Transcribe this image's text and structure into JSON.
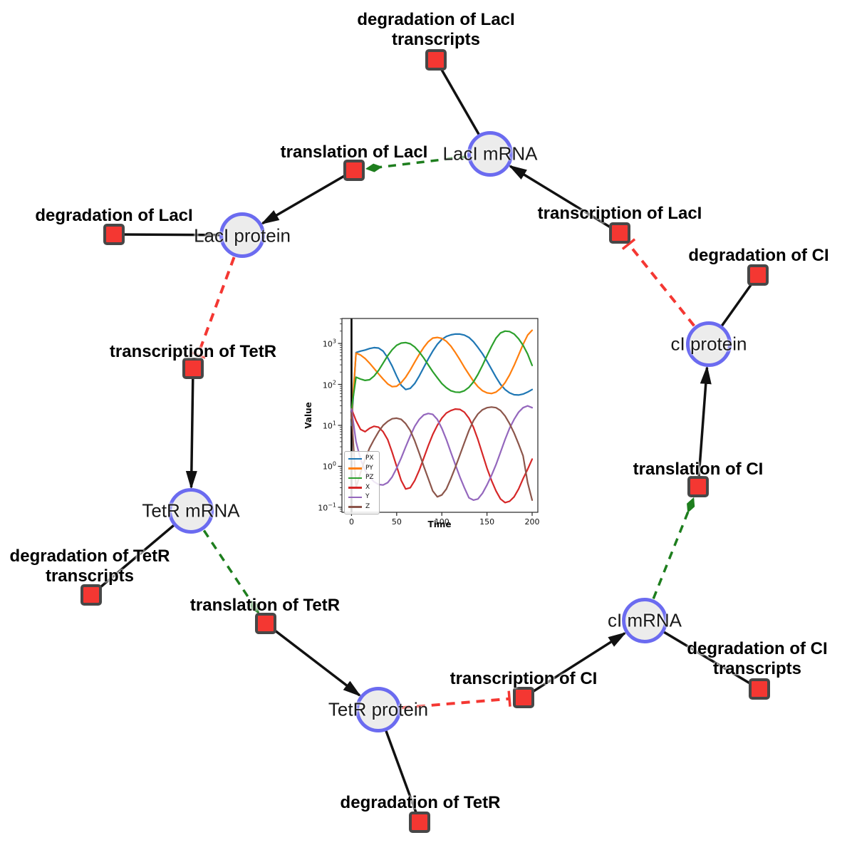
{
  "colors": {
    "species_fill": "#ececec",
    "species_border": "#6b6bf0",
    "reaction_fill": "#f43732",
    "reaction_border": "#474747",
    "edge": "#111111",
    "activation": "#1e7e1e",
    "inhibition": "#f43732",
    "label_color": "#000000"
  },
  "nodes": {
    "species": [
      {
        "label": "LacI mRNA"
      },
      {
        "label": "LacI protein"
      },
      {
        "label": "TetR mRNA"
      },
      {
        "label": "TetR protein"
      },
      {
        "label": "cI mRNA"
      },
      {
        "label": "cI protein"
      }
    ],
    "reactions": [
      {
        "lines": [
          "degradation of LacI",
          "transcripts"
        ]
      },
      {
        "lines": [
          "translation of LacI"
        ]
      },
      {
        "lines": [
          "degradation of LacI"
        ]
      },
      {
        "lines": [
          "transcription of LacI"
        ]
      },
      {
        "lines": [
          "degradation of CI"
        ]
      },
      {
        "lines": [
          "transcription of TetR"
        ]
      },
      {
        "lines": [
          "degradation of TetR",
          "transcripts"
        ]
      },
      {
        "lines": [
          "translation of TetR"
        ]
      },
      {
        "lines": [
          "degradation of TetR"
        ]
      },
      {
        "lines": [
          "transcription of CI"
        ]
      },
      {
        "lines": [
          "degradation of CI",
          "transcripts"
        ]
      },
      {
        "lines": [
          "translation of CI"
        ]
      }
    ]
  },
  "chart_data": {
    "type": "line",
    "xlabel": "Time",
    "ylabel": "Value",
    "y_scale": "log",
    "grid": false,
    "legend_loc": "lower left",
    "xlim": [
      -10.6,
      206.3
    ],
    "ylim_log": [
      -1.122,
      3.609
    ],
    "x_ticks": [
      0,
      50,
      100,
      150,
      200
    ],
    "y_tick_exponents": [
      -1,
      0,
      1,
      2,
      3
    ],
    "vline_x": 0,
    "x": [
      0,
      5,
      10,
      15,
      20,
      25,
      30,
      35,
      40,
      45,
      50,
      55,
      60,
      65,
      70,
      75,
      80,
      85,
      90,
      95,
      100,
      105,
      110,
      115,
      120,
      125,
      130,
      135,
      140,
      145,
      150,
      155,
      160,
      165,
      170,
      175,
      180,
      185,
      190,
      195,
      200
    ],
    "series": [
      {
        "name": "PX",
        "color": "#1f77b4",
        "values": [
          10,
          600,
          650,
          690,
          750,
          790,
          770,
          650,
          450,
          280,
          160,
          95,
          75,
          80,
          105,
          160,
          260,
          420,
          650,
          950,
          1250,
          1480,
          1620,
          1700,
          1690,
          1600,
          1400,
          1100,
          800,
          560,
          370,
          235,
          150,
          100,
          75,
          62,
          56,
          55,
          58,
          65,
          75
        ]
      },
      {
        "name": "PY",
        "color": "#ff7f0e",
        "values": [
          15,
          580,
          520,
          430,
          330,
          245,
          180,
          135,
          103,
          88,
          90,
          110,
          150,
          225,
          350,
          540,
          800,
          1100,
          1350,
          1400,
          1330,
          1130,
          860,
          600,
          400,
          260,
          175,
          120,
          88,
          70,
          62,
          60,
          65,
          80,
          110,
          170,
          290,
          520,
          950,
          1600,
          2100
        ]
      },
      {
        "name": "PZ",
        "color": "#2ca02c",
        "values": [
          25,
          150,
          135,
          125,
          130,
          160,
          220,
          330,
          500,
          700,
          900,
          1020,
          1050,
          980,
          820,
          620,
          440,
          300,
          205,
          145,
          105,
          83,
          70,
          65,
          64,
          70,
          85,
          115,
          175,
          290,
          500,
          850,
          1350,
          1800,
          2000,
          1950,
          1700,
          1300,
          900,
          550,
          290
        ]
      },
      {
        "name": "X",
        "color": "#d62728",
        "values": [
          25,
          13,
          8,
          7,
          8.5,
          9.5,
          9,
          7,
          4.5,
          2.2,
          1.0,
          0.45,
          0.28,
          0.3,
          0.45,
          0.8,
          1.6,
          3.2,
          6,
          10,
          15,
          20,
          23,
          25,
          24.5,
          21,
          15,
          9,
          4.5,
          2.0,
          0.9,
          0.45,
          0.25,
          0.16,
          0.13,
          0.14,
          0.18,
          0.28,
          0.5,
          0.85,
          1.5
        ]
      },
      {
        "name": "Y",
        "color": "#9467bd",
        "values": [
          25,
          4,
          1.5,
          0.8,
          0.55,
          0.42,
          0.36,
          0.35,
          0.4,
          0.55,
          0.9,
          1.6,
          3,
          5.5,
          9.5,
          14,
          18,
          19.5,
          18.5,
          14,
          8.5,
          4.5,
          2.2,
          1.1,
          0.55,
          0.3,
          0.17,
          0.15,
          0.16,
          0.22,
          0.35,
          0.6,
          1.1,
          2.2,
          4.5,
          8.5,
          14,
          21,
          27,
          30,
          27
        ]
      },
      {
        "name": "Z",
        "color": "#8c564b",
        "values": [
          20,
          0.3,
          0.7,
          1.5,
          2.8,
          4.5,
          7,
          10,
          12.5,
          14.5,
          15,
          14,
          11,
          7.5,
          4.2,
          2.1,
          1.0,
          0.5,
          0.25,
          0.18,
          0.2,
          0.28,
          0.5,
          0.95,
          1.9,
          3.8,
          7.5,
          13,
          19,
          24,
          27,
          28,
          27,
          23,
          17,
          11,
          6.5,
          3.5,
          1.8,
          0.4,
          0.15
        ]
      }
    ]
  }
}
